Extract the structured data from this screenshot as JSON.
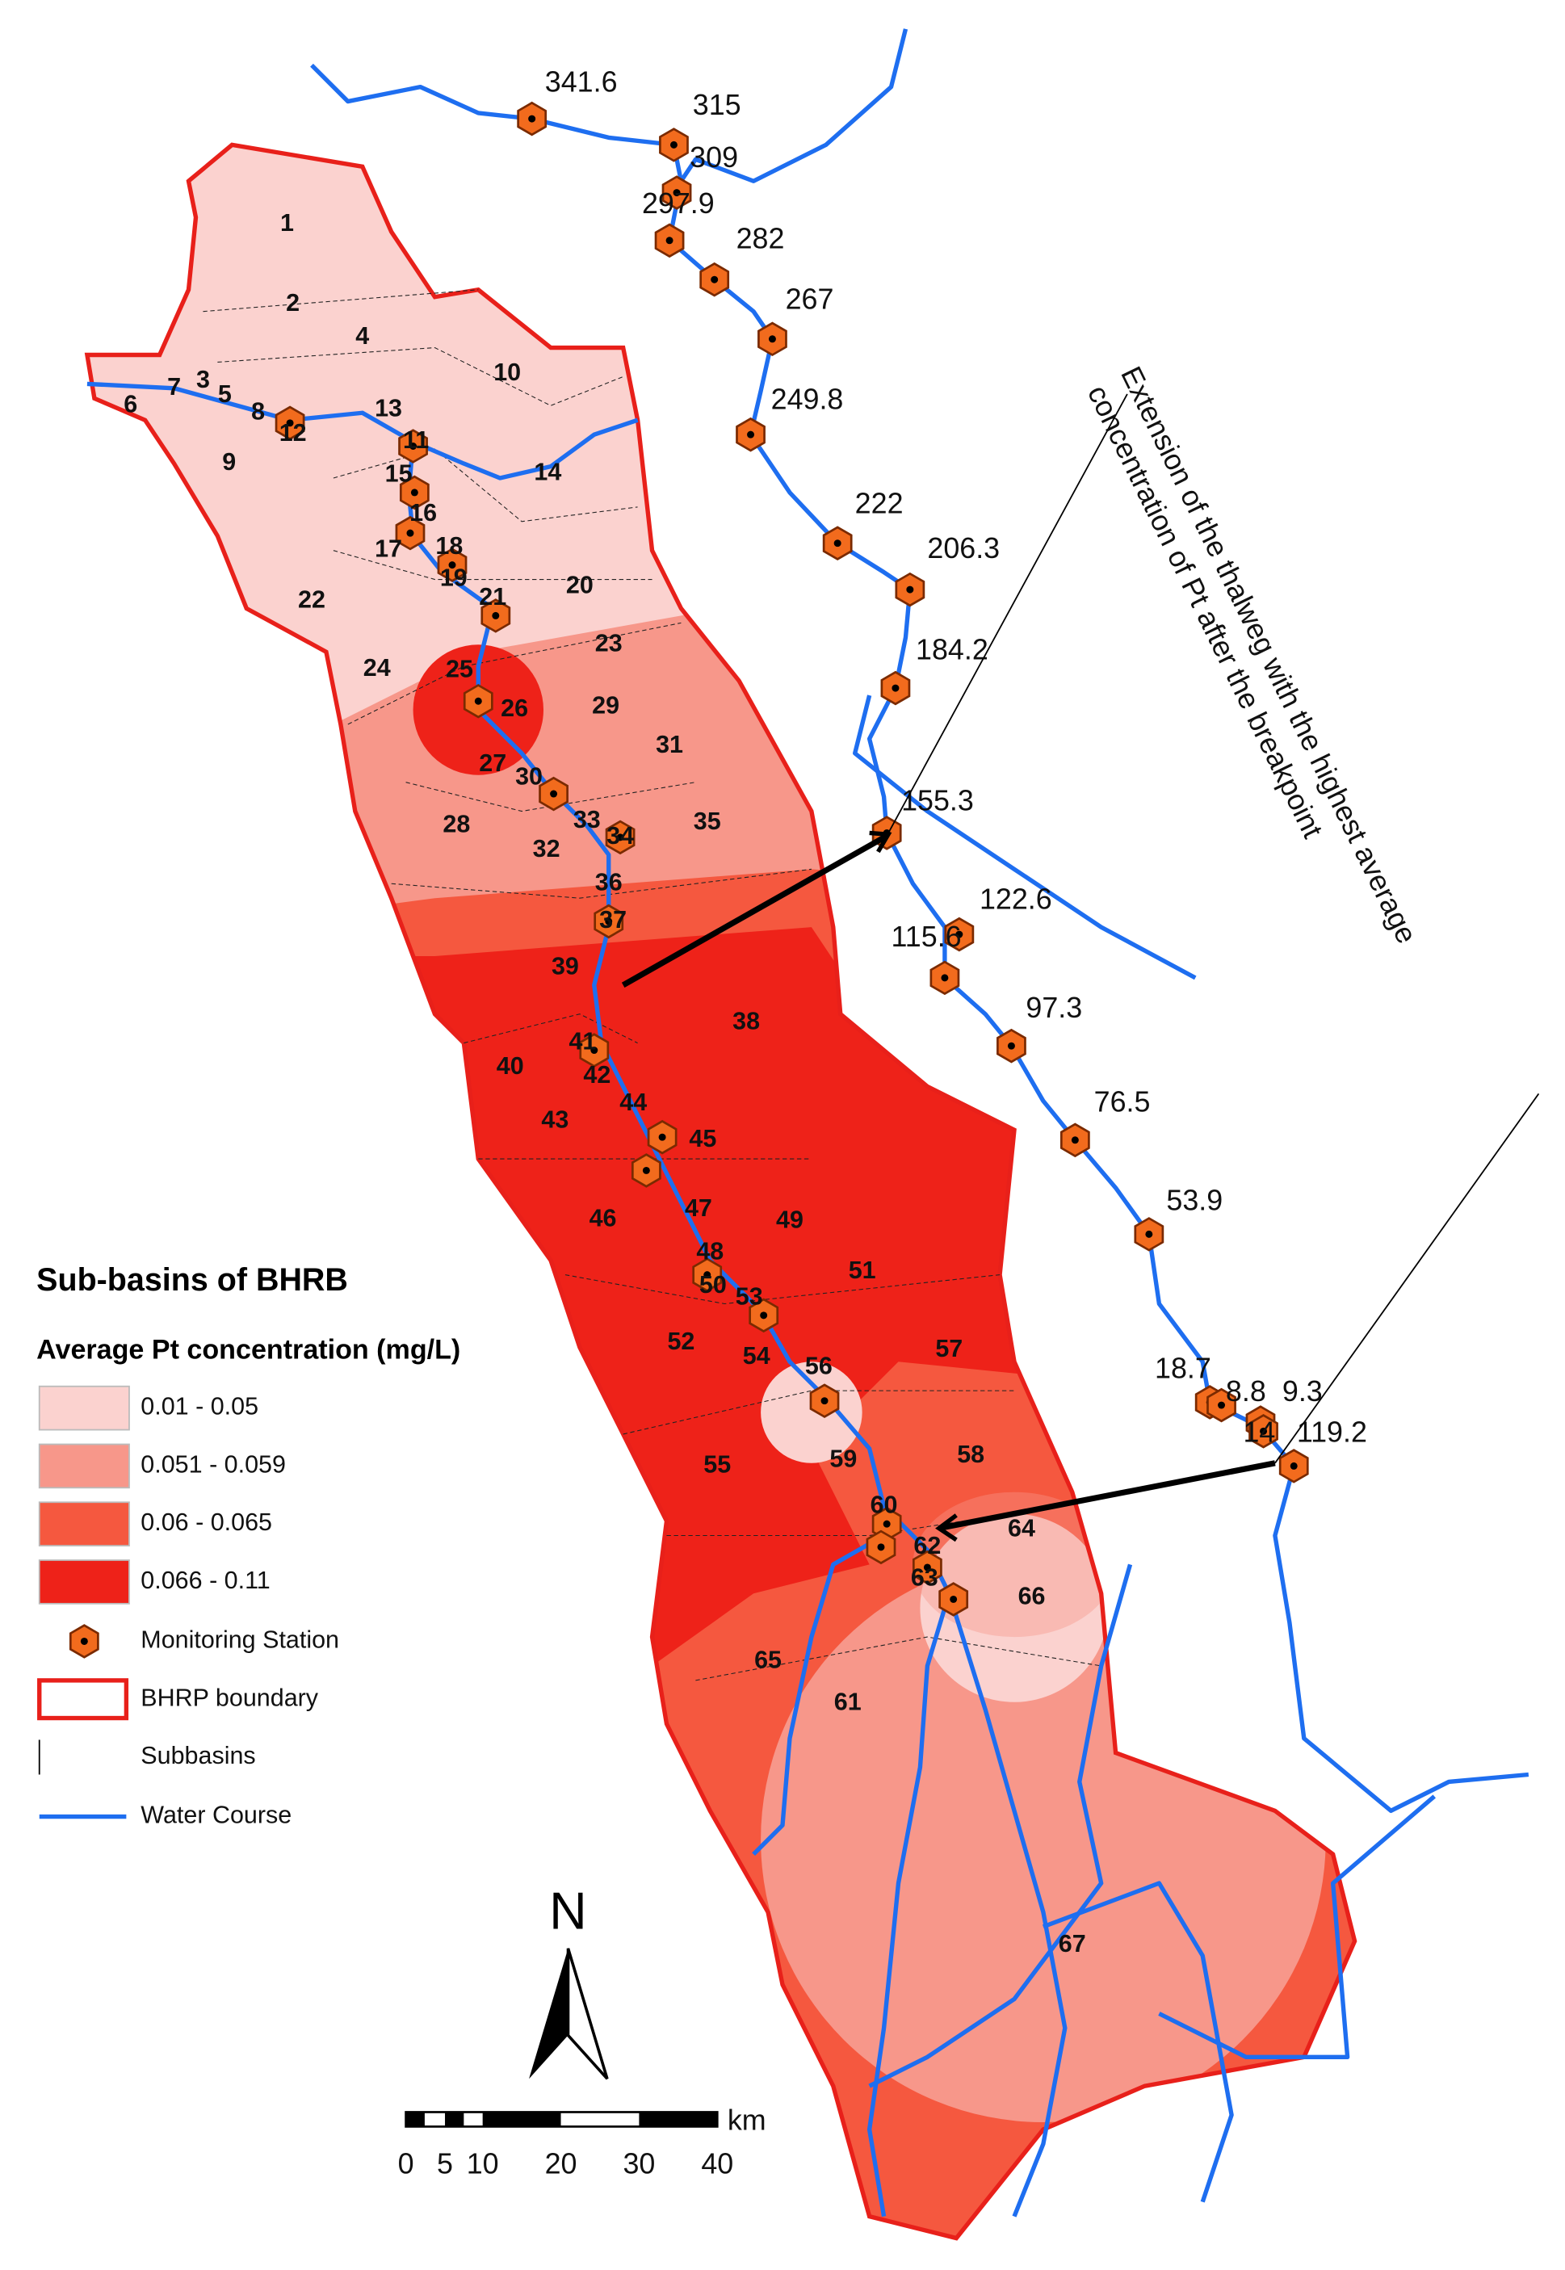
{
  "map": {
    "legend": {
      "title": "Sub-basins of BHRB",
      "subtitle": "Average Pt concentration (mg/L)",
      "classes": [
        {
          "label": "0.01 - 0.05",
          "color": "#fbd2cf"
        },
        {
          "label": "0.051 - 0.059",
          "color": "#f7978a"
        },
        {
          "label": "0.06 - 0.065",
          "color": "#f5583f"
        },
        {
          "label": "0.066 - 0.11",
          "color": "#ee2219"
        }
      ],
      "items": [
        "Monitoring Station",
        "BHRP boundary",
        "Subbasins",
        "Water Course"
      ]
    },
    "subbasins": [
      "1",
      "2",
      "3",
      "4",
      "5",
      "6",
      "7",
      "8",
      "9",
      "10",
      "11",
      "12",
      "13",
      "14",
      "15",
      "16",
      "17",
      "18",
      "19",
      "20",
      "21",
      "22",
      "23",
      "24",
      "25",
      "26",
      "27",
      "28",
      "29",
      "30",
      "31",
      "32",
      "33",
      "34",
      "35",
      "36",
      "37",
      "38",
      "39",
      "40",
      "41",
      "42",
      "43",
      "44",
      "45",
      "46",
      "47",
      "48",
      "49",
      "50",
      "51",
      "52",
      "53",
      "54",
      "55",
      "56",
      "57",
      "58",
      "59",
      "60",
      "61",
      "62",
      "63",
      "64",
      "65",
      "66",
      "67"
    ],
    "stations": [
      "341.6",
      "315",
      "309",
      "297.9",
      "282",
      "267",
      "249.8",
      "222",
      "206.3",
      "184.2",
      "155.3",
      "122.6",
      "115.6",
      "97.3",
      "76.5",
      "53.9",
      "18.7",
      "8.8",
      "9.3",
      "14",
      "119.2"
    ],
    "annotation": [
      "Extension of the thalweg with the highest average",
      "concentration of Pt after the breakpoint"
    ],
    "north": "N",
    "scale_bar": {
      "labels": [
        "0",
        "5",
        "10",
        "20",
        "30",
        "40"
      ],
      "unit": "km"
    }
  }
}
